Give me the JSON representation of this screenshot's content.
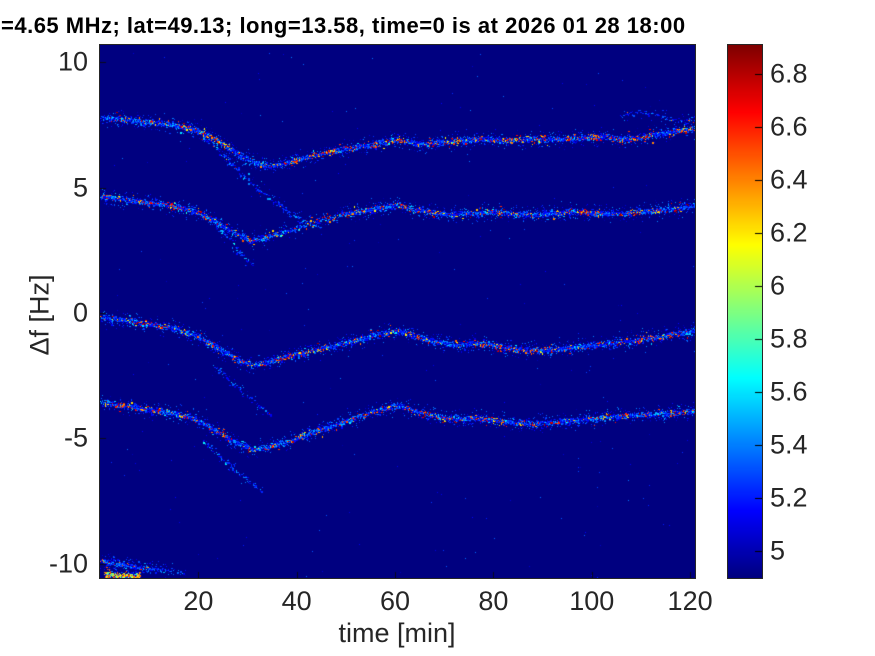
{
  "title": "=4.65 MHz;  lat=49.13; long=13.58, time=0 is at 2026 01 28 18:00",
  "chart_data": {
    "type": "heatmap",
    "subtype": "doppler-spectrogram",
    "title": "=4.65 MHz;  lat=49.13; long=13.58, time=0 is at 2026 01 28 18:00",
    "xlabel": "time [min]",
    "ylabel": "Δf [Hz]",
    "xlim": [
      0,
      121
    ],
    "ylim": [
      -10.56,
      10.68
    ],
    "x_ticks": [
      20,
      40,
      60,
      80,
      100,
      120
    ],
    "y_ticks": [
      10,
      5,
      0,
      -5,
      -10
    ],
    "grid": false,
    "background_color": "#000083",
    "tick_color": "#262626",
    "colorbar": {
      "colormap": "jet",
      "min": 4.9,
      "max": 6.91,
      "ticks": [
        5,
        5.2,
        5.4,
        5.6,
        5.8,
        6,
        6.2,
        6.4,
        6.6,
        6.8
      ]
    },
    "series": [
      {
        "name": "trace-upper-1",
        "density": 1,
        "hot": 1,
        "points": [
          [
            0.3,
            7.78
          ],
          [
            4,
            7.72
          ],
          [
            8,
            7.62
          ],
          [
            12,
            7.55
          ],
          [
            16,
            7.45
          ],
          [
            20,
            7.25
          ],
          [
            24,
            6.85
          ],
          [
            28,
            6.35
          ],
          [
            32,
            5.95
          ],
          [
            34.5,
            5.85
          ],
          [
            37,
            5.95
          ],
          [
            41,
            6.15
          ],
          [
            46,
            6.4
          ],
          [
            51,
            6.55
          ],
          [
            56,
            6.75
          ],
          [
            60,
            6.9
          ],
          [
            63.5,
            6.78
          ],
          [
            67,
            6.72
          ],
          [
            71,
            6.82
          ],
          [
            75,
            6.9
          ],
          [
            79,
            6.92
          ],
          [
            83,
            6.86
          ],
          [
            87,
            6.94
          ],
          [
            91,
            6.9
          ],
          [
            95,
            6.94
          ],
          [
            99,
            7.0
          ],
          [
            103,
            7.02
          ],
          [
            106.5,
            6.92
          ],
          [
            110,
            7.0
          ],
          [
            113,
            7.12
          ],
          [
            116,
            7.22
          ],
          [
            121,
            7.36
          ]
        ]
      },
      {
        "name": "trace-upper-2",
        "density": 1,
        "hot": 0.9,
        "points": [
          [
            0.3,
            4.62
          ],
          [
            5,
            4.52
          ],
          [
            10,
            4.4
          ],
          [
            15,
            4.25
          ],
          [
            19,
            4.05
          ],
          [
            23,
            3.7
          ],
          [
            27,
            3.25
          ],
          [
            30.5,
            2.87
          ],
          [
            33.5,
            3.0
          ],
          [
            37,
            3.2
          ],
          [
            41,
            3.45
          ],
          [
            45,
            3.7
          ],
          [
            49,
            3.9
          ],
          [
            53,
            4.05
          ],
          [
            57,
            4.18
          ],
          [
            60.5,
            4.32
          ],
          [
            64,
            4.12
          ],
          [
            68,
            3.98
          ],
          [
            72,
            3.92
          ],
          [
            76,
            3.98
          ],
          [
            80,
            4.02
          ],
          [
            84,
            3.95
          ],
          [
            88,
            3.9
          ],
          [
            92,
            3.98
          ],
          [
            96,
            4.04
          ],
          [
            100,
            4.0
          ],
          [
            104,
            3.94
          ],
          [
            108,
            4.0
          ],
          [
            112,
            4.06
          ],
          [
            116,
            4.12
          ],
          [
            121,
            4.3
          ]
        ],
        "dens": [
          1,
          1,
          1,
          1,
          1,
          1,
          1,
          1,
          0.8,
          0.6,
          0.55,
          0.6,
          0.85,
          1,
          1,
          1,
          1,
          1,
          1,
          1,
          1,
          1,
          1,
          1,
          1,
          1,
          1,
          1,
          1,
          1,
          1
        ]
      },
      {
        "name": "trace-lower-1",
        "density": 1,
        "hot": 0.85,
        "points": [
          [
            0.3,
            -0.18
          ],
          [
            5,
            -0.3
          ],
          [
            10,
            -0.45
          ],
          [
            15,
            -0.62
          ],
          [
            20,
            -0.95
          ],
          [
            24,
            -1.4
          ],
          [
            28,
            -1.85
          ],
          [
            31,
            -2.07
          ],
          [
            34,
            -1.95
          ],
          [
            38,
            -1.75
          ],
          [
            43,
            -1.5
          ],
          [
            48,
            -1.3
          ],
          [
            53,
            -1.05
          ],
          [
            57,
            -0.85
          ],
          [
            60.5,
            -0.7
          ],
          [
            64,
            -0.92
          ],
          [
            68,
            -1.15
          ],
          [
            72,
            -1.28
          ],
          [
            76,
            -1.22
          ],
          [
            80,
            -1.3
          ],
          [
            84,
            -1.42
          ],
          [
            88,
            -1.5
          ],
          [
            92,
            -1.45
          ],
          [
            96,
            -1.38
          ],
          [
            100,
            -1.3
          ],
          [
            104,
            -1.22
          ],
          [
            108,
            -1.12
          ],
          [
            112,
            -1.0
          ],
          [
            116,
            -0.88
          ],
          [
            121,
            -0.72
          ]
        ]
      },
      {
        "name": "trace-lower-2",
        "density": 1,
        "hot": 0.9,
        "points": [
          [
            0.3,
            -3.55
          ],
          [
            5,
            -3.7
          ],
          [
            10,
            -3.85
          ],
          [
            15,
            -4.0
          ],
          [
            19,
            -4.2
          ],
          [
            23,
            -4.6
          ],
          [
            27,
            -5.1
          ],
          [
            31,
            -5.45
          ],
          [
            34,
            -5.35
          ],
          [
            38,
            -5.15
          ],
          [
            43,
            -4.8
          ],
          [
            48,
            -4.45
          ],
          [
            53,
            -4.1
          ],
          [
            57,
            -3.85
          ],
          [
            60.5,
            -3.68
          ],
          [
            64,
            -3.9
          ],
          [
            68,
            -4.1
          ],
          [
            72,
            -4.25
          ],
          [
            76,
            -4.2
          ],
          [
            80,
            -4.28
          ],
          [
            84,
            -4.35
          ],
          [
            88,
            -4.42
          ],
          [
            92,
            -4.35
          ],
          [
            96,
            -4.28
          ],
          [
            100,
            -4.22
          ],
          [
            104,
            -4.15
          ],
          [
            108,
            -4.08
          ],
          [
            112,
            -4.05
          ],
          [
            116,
            -4.0
          ],
          [
            121,
            -3.92
          ]
        ]
      },
      {
        "name": "trace-bottom-edge",
        "density": 1,
        "hot": 0.3,
        "points": [
          [
            0.3,
            -9.88
          ],
          [
            3,
            -10.0
          ],
          [
            6,
            -10.1
          ],
          [
            9,
            -10.18
          ],
          [
            12,
            -10.25
          ],
          [
            15,
            -10.32
          ],
          [
            18,
            -10.4
          ]
        ],
        "dens": [
          1,
          1,
          1,
          0.8,
          0.5,
          0.25,
          0.1
        ]
      },
      {
        "name": "trace-bottom-edge-blob",
        "density": 2.2,
        "hot": 0.85,
        "sigma": 1.2,
        "hotRange": [
          5.8,
          6.6
        ],
        "points": [
          [
            1,
            -10.42
          ],
          [
            3.5,
            -10.48
          ],
          [
            6,
            -10.5
          ],
          [
            8,
            -10.52
          ]
        ]
      },
      {
        "name": "branch-upper-1",
        "density": 0.3,
        "hot": 0.12,
        "points": [
          [
            21,
            7.0
          ],
          [
            25,
            6.3
          ],
          [
            29,
            5.5
          ],
          [
            33,
            4.8
          ],
          [
            37,
            4.2
          ],
          [
            41,
            3.7
          ],
          [
            45,
            3.4
          ]
        ]
      },
      {
        "name": "branch-upper-2",
        "density": 0.32,
        "hot": 0.12,
        "points": [
          [
            22,
            3.85
          ],
          [
            25,
            3.2
          ],
          [
            28,
            2.5
          ],
          [
            31,
            1.9
          ]
        ]
      },
      {
        "name": "branch-lower-1",
        "density": 0.22,
        "hot": 0.1,
        "points": [
          [
            23,
            -2.05
          ],
          [
            27,
            -2.8
          ],
          [
            31,
            -3.5
          ],
          [
            35,
            -4.15
          ]
        ]
      },
      {
        "name": "branch-lower-2",
        "density": 0.26,
        "hot": 0.1,
        "points": [
          [
            21,
            -5.1
          ],
          [
            25,
            -5.8
          ],
          [
            29,
            -6.5
          ],
          [
            33,
            -7.1
          ]
        ]
      },
      {
        "name": "cloud-upper-right",
        "density": 0.2,
        "hot": 0.1,
        "points": [
          [
            106,
            7.85
          ],
          [
            110,
            8.05
          ],
          [
            114,
            7.85
          ],
          [
            118,
            7.65
          ],
          [
            121,
            7.7
          ]
        ]
      }
    ]
  }
}
